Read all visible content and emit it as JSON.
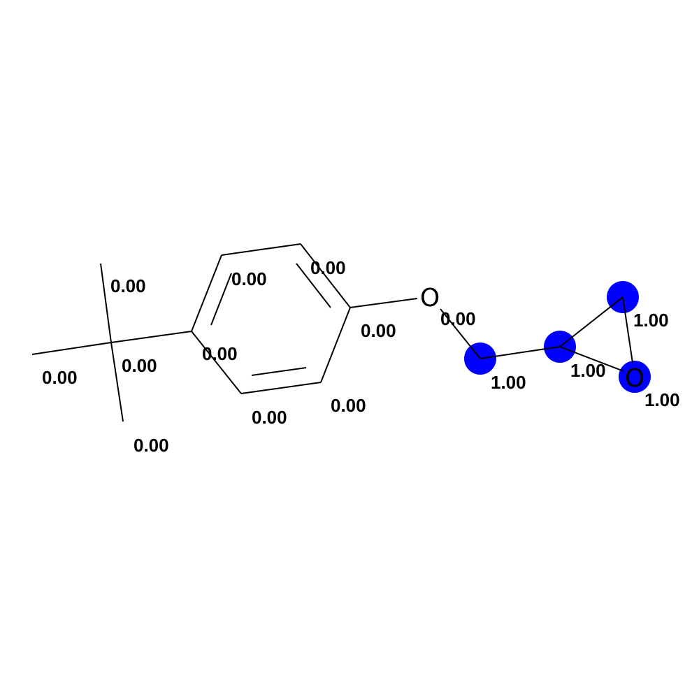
{
  "colors": {
    "background": "#ffffff",
    "bond": "#000000",
    "highlight": "#0000ff",
    "text": "#000000"
  },
  "atom_labels": {
    "ether_oxygen": "O",
    "epoxide_oxygen": "O"
  },
  "atom_weights": {
    "methyl_top": "0.00",
    "methyl_left": "0.00",
    "quaternary_carbon": "0.00",
    "methyl_bottom": "0.00",
    "ring_c1": "0.00",
    "ring_c2": "0.00",
    "ring_c3": "0.00",
    "ring_c4": "0.00",
    "ring_c5": "0.00",
    "ring_c6": "0.00",
    "ether_oxygen": "0.00",
    "ch2": "1.00",
    "epoxide_ch": "1.00",
    "epoxide_ch2": "1.00",
    "epoxide_oxygen": "1.00"
  }
}
